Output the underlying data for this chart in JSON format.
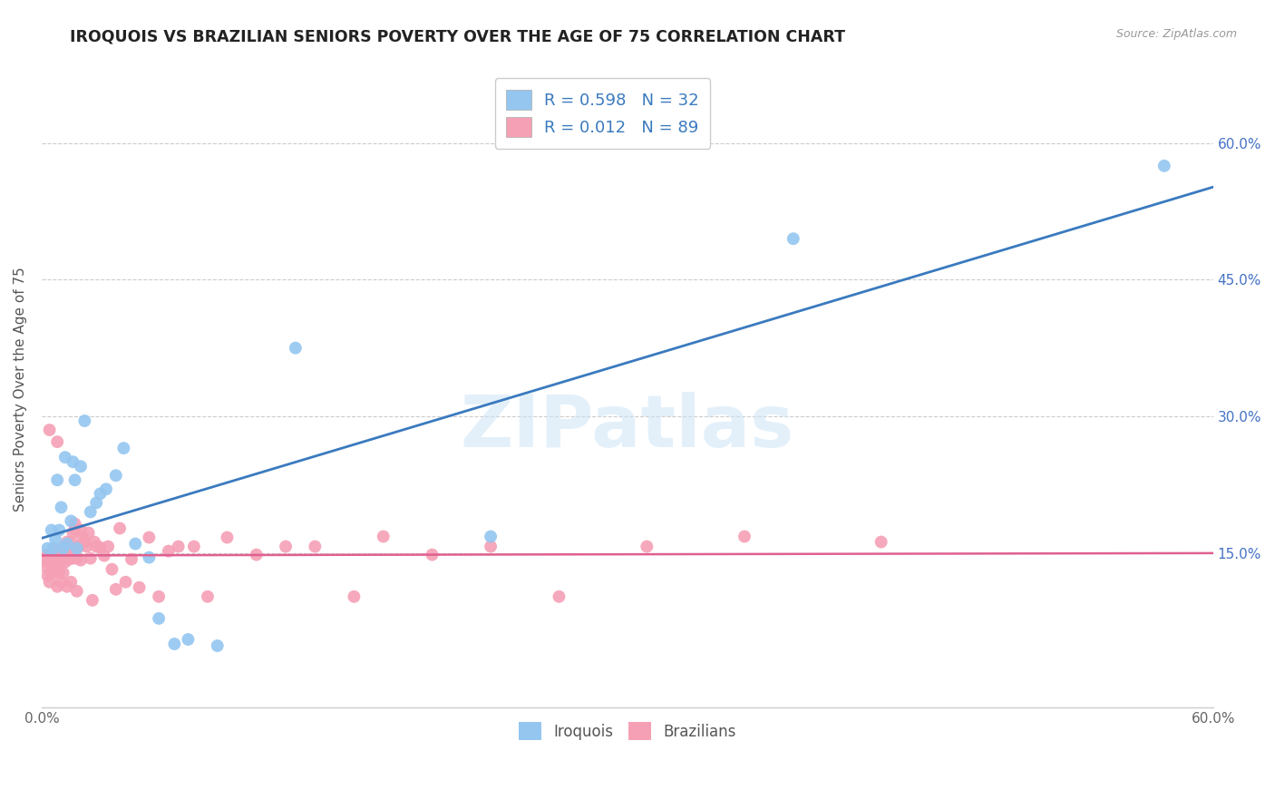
{
  "title": "IROQUOIS VS BRAZILIAN SENIORS POVERTY OVER THE AGE OF 75 CORRELATION CHART",
  "source": "Source: ZipAtlas.com",
  "ylabel": "Seniors Poverty Over the Age of 75",
  "xlim": [
    0.0,
    0.6
  ],
  "ylim": [
    -0.02,
    0.68
  ],
  "ytick_positions": [
    0.15,
    0.3,
    0.45,
    0.6
  ],
  "ytick_labels": [
    "15.0%",
    "30.0%",
    "45.0%",
    "60.0%"
  ],
  "xtick_positions": [
    0.0,
    0.6
  ],
  "xtick_labels": [
    "0.0%",
    "60.0%"
  ],
  "grid_color": "#cccccc",
  "background_color": "#ffffff",
  "iroquois_color": "#94c6f0",
  "brazilians_color": "#f5a0b5",
  "iroquois_line_color": "#3a7abf",
  "brazilians_line_color": "#e06090",
  "right_tick_color": "#4472c4",
  "R_iroquois": 0.598,
  "N_iroquois": 32,
  "R_brazilians": 0.012,
  "N_brazilians": 89,
  "watermark": "ZIPatlas",
  "iroquois_x": [
    0.003,
    0.005,
    0.006,
    0.007,
    0.008,
    0.009,
    0.01,
    0.011,
    0.012,
    0.013,
    0.015,
    0.016,
    0.017,
    0.018,
    0.02,
    0.022,
    0.025,
    0.028,
    0.03,
    0.033,
    0.038,
    0.042,
    0.048,
    0.055,
    0.06,
    0.068,
    0.075,
    0.09,
    0.13,
    0.23,
    0.385,
    0.575
  ],
  "iroquois_y": [
    0.155,
    0.175,
    0.155,
    0.165,
    0.23,
    0.175,
    0.2,
    0.155,
    0.255,
    0.16,
    0.185,
    0.25,
    0.23,
    0.155,
    0.245,
    0.295,
    0.195,
    0.205,
    0.215,
    0.22,
    0.235,
    0.265,
    0.16,
    0.145,
    0.078,
    0.05,
    0.055,
    0.048,
    0.375,
    0.168,
    0.495,
    0.575
  ],
  "brazilians_x": [
    0.002,
    0.003,
    0.003,
    0.004,
    0.004,
    0.004,
    0.005,
    0.005,
    0.006,
    0.006,
    0.006,
    0.007,
    0.007,
    0.007,
    0.008,
    0.008,
    0.008,
    0.009,
    0.009,
    0.01,
    0.01,
    0.01,
    0.011,
    0.011,
    0.012,
    0.012,
    0.013,
    0.013,
    0.014,
    0.014,
    0.015,
    0.015,
    0.016,
    0.016,
    0.017,
    0.017,
    0.018,
    0.018,
    0.019,
    0.02,
    0.02,
    0.021,
    0.022,
    0.023,
    0.024,
    0.025,
    0.026,
    0.027,
    0.028,
    0.03,
    0.032,
    0.034,
    0.036,
    0.038,
    0.04,
    0.043,
    0.046,
    0.05,
    0.055,
    0.06,
    0.065,
    0.07,
    0.078,
    0.085,
    0.095,
    0.11,
    0.125,
    0.14,
    0.16,
    0.175,
    0.2,
    0.23,
    0.265,
    0.31,
    0.36,
    0.43,
    0.002,
    0.003,
    0.004,
    0.005,
    0.006,
    0.007,
    0.008,
    0.009,
    0.01,
    0.011,
    0.013,
    0.015,
    0.018
  ],
  "brazilians_y": [
    0.145,
    0.148,
    0.14,
    0.143,
    0.146,
    0.285,
    0.145,
    0.148,
    0.14,
    0.144,
    0.148,
    0.145,
    0.148,
    0.153,
    0.14,
    0.144,
    0.272,
    0.143,
    0.147,
    0.142,
    0.145,
    0.149,
    0.142,
    0.156,
    0.14,
    0.149,
    0.155,
    0.162,
    0.143,
    0.156,
    0.148,
    0.162,
    0.144,
    0.172,
    0.176,
    0.182,
    0.155,
    0.144,
    0.157,
    0.175,
    0.142,
    0.167,
    0.162,
    0.157,
    0.172,
    0.144,
    0.098,
    0.162,
    0.157,
    0.156,
    0.147,
    0.157,
    0.132,
    0.11,
    0.177,
    0.118,
    0.143,
    0.112,
    0.167,
    0.102,
    0.152,
    0.157,
    0.157,
    0.102,
    0.167,
    0.148,
    0.157,
    0.157,
    0.102,
    0.168,
    0.148,
    0.157,
    0.102,
    0.157,
    0.168,
    0.162,
    0.135,
    0.125,
    0.118,
    0.128,
    0.133,
    0.128,
    0.113,
    0.13,
    0.118,
    0.128,
    0.113,
    0.118,
    0.108
  ]
}
